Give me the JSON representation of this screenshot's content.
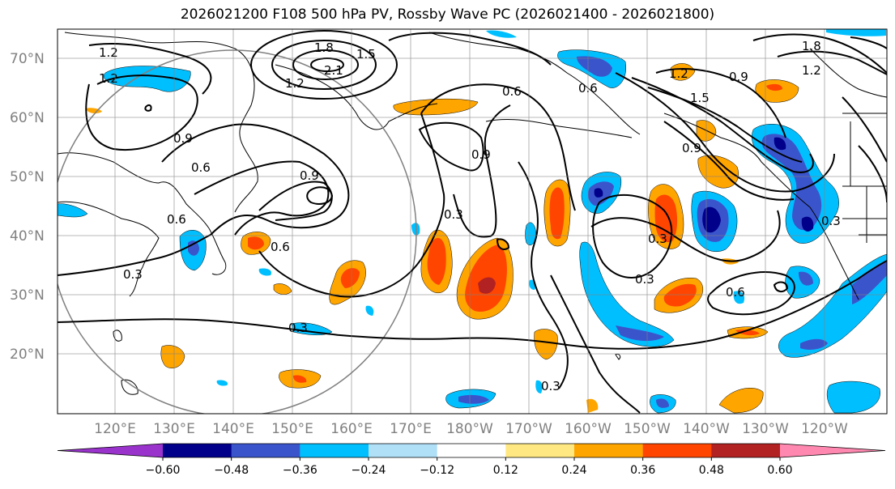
{
  "title": "2026021200 F108 500 hPa PV, Rossby Wave PC (2026021400 - 2026021800)",
  "lat_labels": [
    "70°N",
    "60°N",
    "50°N",
    "40°N",
    "30°N",
    "20°N"
  ],
  "lon_labels": [
    "120°E",
    "130°E",
    "140°E",
    "150°E",
    "160°E",
    "170°E",
    "180°W",
    "170°W",
    "160°W",
    "150°W",
    "140°W",
    "130°W",
    "120°W"
  ],
  "colorbar": {
    "colors": [
      "#9933cc",
      "#00008b",
      "#3a55cc",
      "#00bfff",
      "#b0e0f8",
      "#ffffff",
      "#ffe882",
      "#ffa500",
      "#ff4500",
      "#b22222",
      "#ff88b0"
    ],
    "tick_labels": [
      "−0.60",
      "−0.48",
      "−0.36",
      "−0.24",
      "−0.12",
      "0.12",
      "0.24",
      "0.36",
      "0.48",
      "0.60"
    ]
  },
  "contour_labels": [
    "1.2",
    "1.2",
    "1.8",
    "2.1",
    "1.5",
    "1.2",
    "0.9",
    "0.6",
    "0.9",
    "0.9",
    "0.6",
    "0.3",
    "0.6",
    "0.3",
    "0.3",
    "0.6",
    "1.2",
    "1.5",
    "0.9",
    "0.9",
    "1.8",
    "1.2",
    "0.6",
    "0.3",
    "0.3",
    "0.3",
    "0.6",
    "0.3"
  ]
}
